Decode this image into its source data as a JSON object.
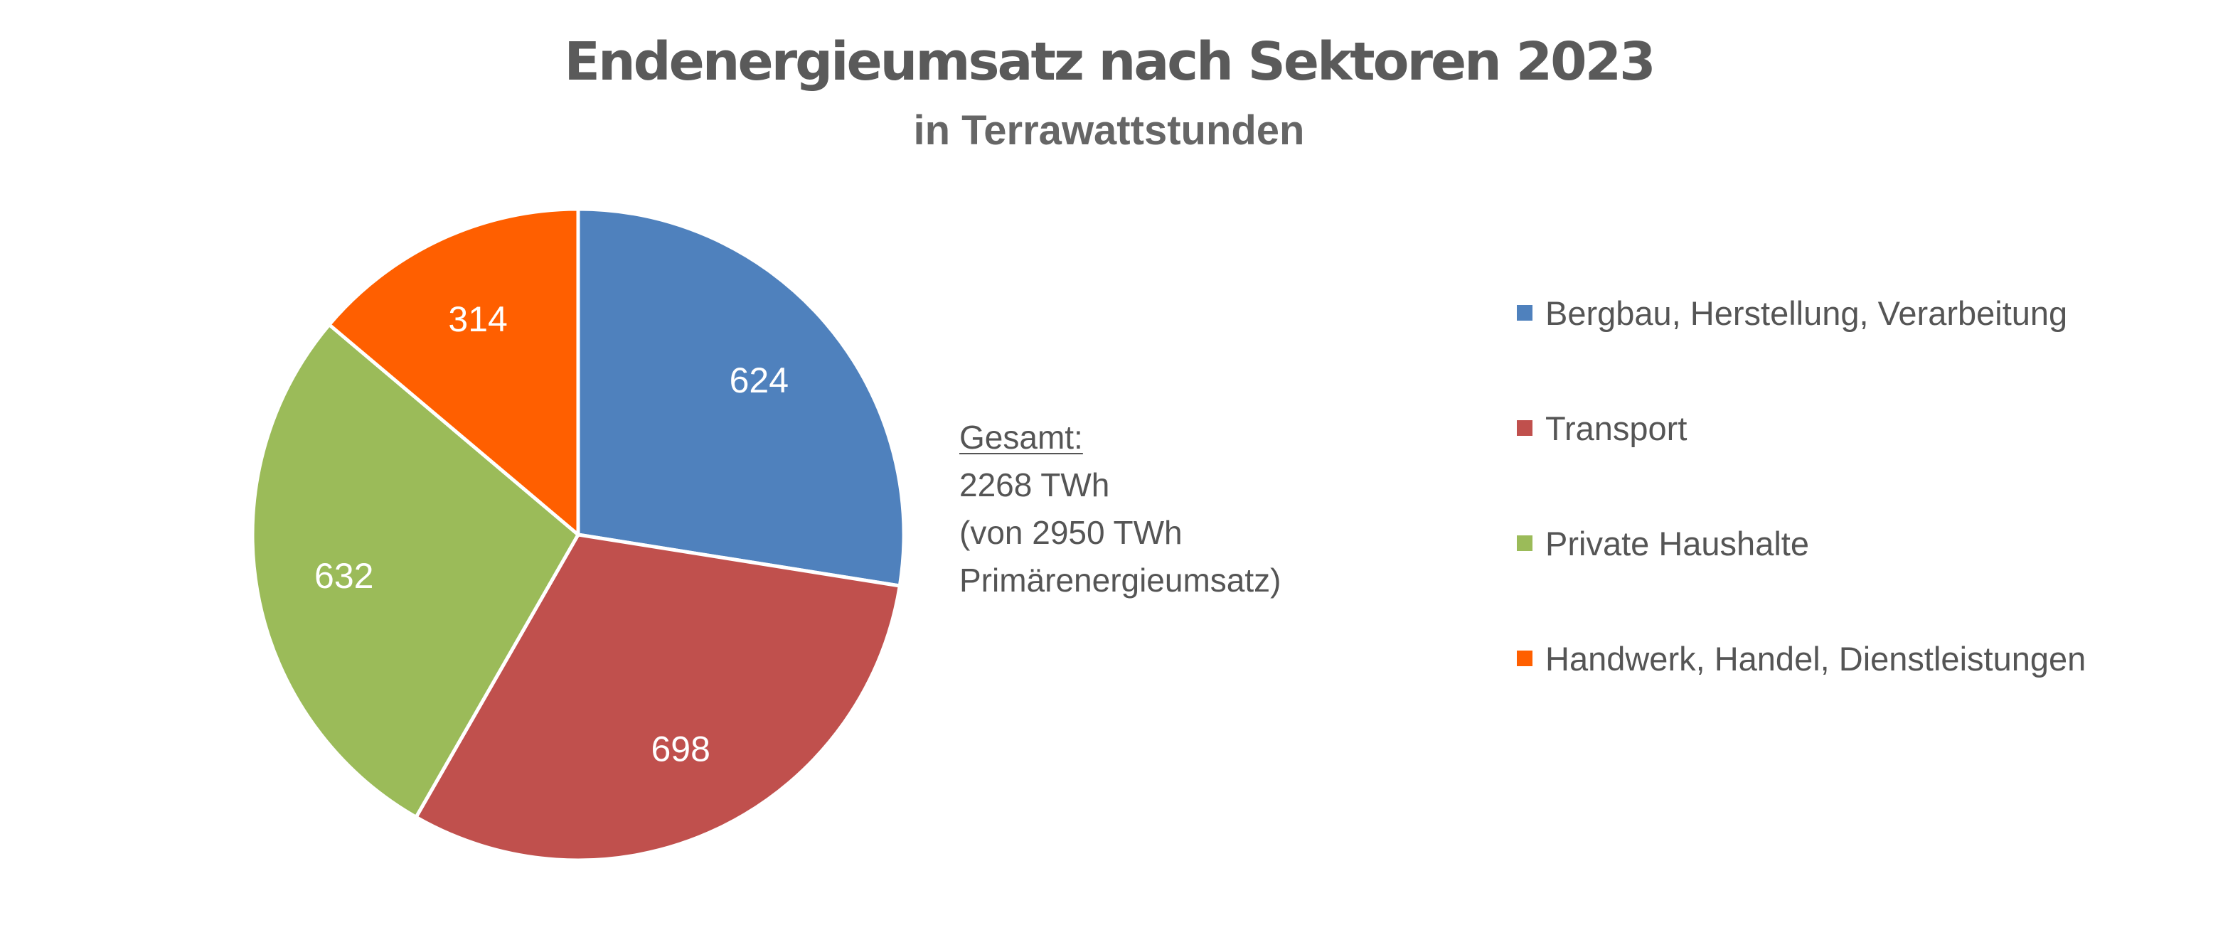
{
  "chart_data": {
    "type": "pie",
    "title": "Endenergieumsatz nach Sektoren 2023",
    "subtitle": "in Terrawattstunden",
    "slices": [
      {
        "label": "Bergbau, Herstellung, Verarbeitung",
        "value": 624,
        "color": "#4F81BD"
      },
      {
        "label": "Transport",
        "value": 698,
        "color": "#C0504D"
      },
      {
        "label": "Private Haushalte",
        "value": 632,
        "color": "#9BBB59"
      },
      {
        "label": "Handwerk, Handel, Dienstleistungen",
        "value": 314,
        "color": "#FF5F00"
      }
    ],
    "start_angle": "12 o'clock",
    "direction": "clockwise",
    "legend": "right",
    "data_labels": "inside",
    "annotation": {
      "heading": "Gesamt:",
      "lines": [
        "2268 TWh",
        "(von 2950 TWh",
        "Primärenergieumsatz)"
      ]
    }
  }
}
